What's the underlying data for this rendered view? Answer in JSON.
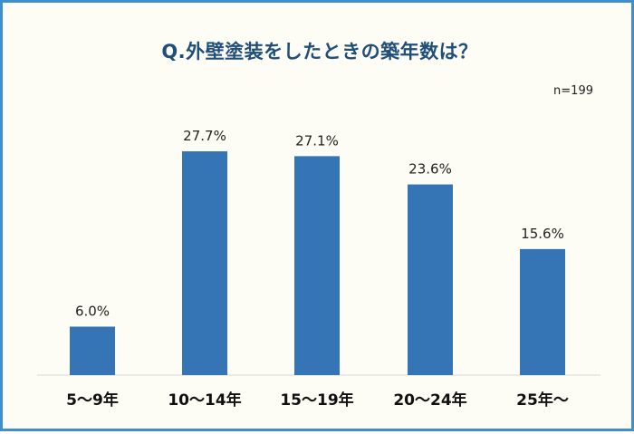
{
  "chart_data": {
    "type": "bar",
    "title": "Q.外壁塗装をしたときの築年数は？",
    "note": "n=199",
    "categories": [
      "5～9年",
      "10～14年",
      "15～19年",
      "20～24年",
      "25年～"
    ],
    "values": [
      6.0,
      27.7,
      27.1,
      23.6,
      15.6
    ],
    "value_labels": [
      "6.0%",
      "27.7%",
      "27.1%",
      "23.6%",
      "15.6%"
    ],
    "ylim": [
      0,
      30
    ],
    "grid": false,
    "legend": "none",
    "bar_color": "#3574b5"
  }
}
